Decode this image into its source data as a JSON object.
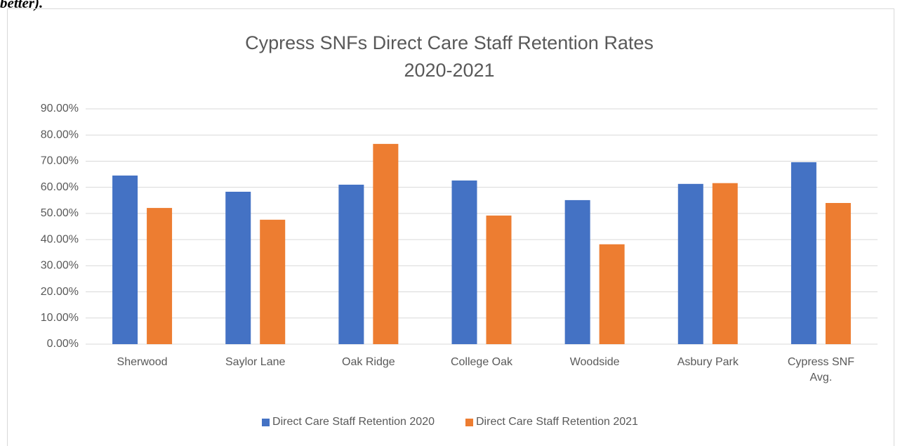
{
  "page_text": "better).",
  "chart_data": {
    "type": "bar",
    "title": "Cypress SNFs Direct Care Staff Retention Rates",
    "subtitle": "2020-2021",
    "categories": [
      "Sherwood",
      "Saylor Lane",
      "Oak Ridge",
      "College Oak",
      "Woodside",
      "Asbury Park",
      "Cypress SNF Avg."
    ],
    "series": [
      {
        "name": "Direct Care Staff Retention 2020",
        "color": "#4472c4",
        "values": [
          64.5,
          58.3,
          61.0,
          62.6,
          55.1,
          61.3,
          69.6
        ]
      },
      {
        "name": "Direct Care Staff Retention 2021",
        "color": "#ed7d31",
        "values": [
          52.1,
          47.6,
          76.6,
          49.2,
          38.2,
          61.6,
          54.0
        ]
      }
    ],
    "ylim": [
      0,
      90
    ],
    "yticks": [
      {
        "value": 0,
        "label": "0.00%"
      },
      {
        "value": 10,
        "label": "10.00%"
      },
      {
        "value": 20,
        "label": "20.00%"
      },
      {
        "value": 30,
        "label": "30.00%"
      },
      {
        "value": 40,
        "label": "40.00%"
      },
      {
        "value": 50,
        "label": "50.00%"
      },
      {
        "value": 60,
        "label": "60.00%"
      },
      {
        "value": 70,
        "label": "70.00%"
      },
      {
        "value": 80,
        "label": "80.00%"
      },
      {
        "value": 90,
        "label": "90.00%"
      }
    ],
    "grid": true,
    "legend": "bottom"
  }
}
